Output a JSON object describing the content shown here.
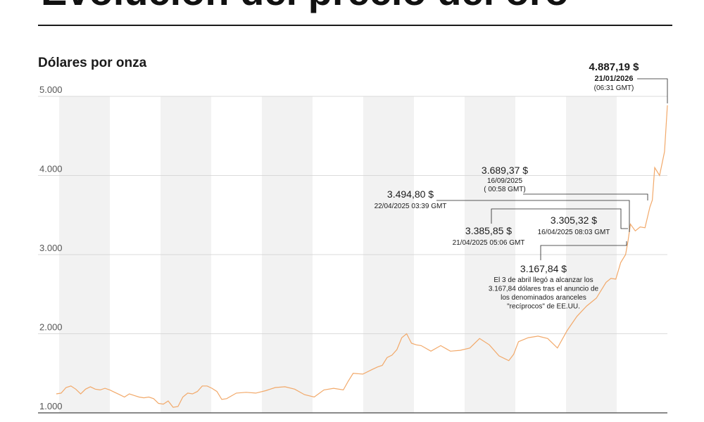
{
  "header": {
    "title_partial": "Evolución del precio del oro"
  },
  "chart_data": {
    "type": "line",
    "ylabel": "Dólares por onza",
    "ylim": [
      1000,
      5000
    ],
    "yticks": [
      1000,
      2000,
      3000,
      4000,
      5000
    ],
    "ytick_labels": [
      "1.000",
      "2.000",
      "3.000",
      "4.000",
      "5.000"
    ],
    "xlim": [
      2013.5,
      2026.06
    ],
    "line_color": "#f2a96a",
    "band_color": "#f2f2f2",
    "series": [
      {
        "x": [
          2013.5,
          2013.6,
          2013.7,
          2013.8,
          2013.9,
          2014.0,
          2014.1,
          2014.2,
          2014.3,
          2014.4,
          2014.5,
          2014.6,
          2014.7,
          2014.8,
          2014.9,
          2015.0,
          2015.1,
          2015.2,
          2015.3,
          2015.4,
          2015.5,
          2015.6,
          2015.7,
          2015.8,
          2015.9,
          2016.0,
          2016.1,
          2016.2,
          2016.3,
          2016.4,
          2016.5,
          2016.6,
          2016.7,
          2016.8,
          2016.9,
          2017.0,
          2017.2,
          2017.4,
          2017.6,
          2017.8,
          2018.0,
          2018.2,
          2018.4,
          2018.6,
          2018.8,
          2019.0,
          2019.2,
          2019.4,
          2019.5,
          2019.6,
          2019.8,
          2020.0,
          2020.1,
          2020.2,
          2020.3,
          2020.4,
          2020.5,
          2020.6,
          2020.7,
          2020.8,
          2020.9,
          2021.0,
          2021.2,
          2021.4,
          2021.6,
          2021.8,
          2022.0,
          2022.2,
          2022.4,
          2022.6,
          2022.8,
          2022.9,
          2023.0,
          2023.2,
          2023.4,
          2023.6,
          2023.8,
          2024.0,
          2024.2,
          2024.4,
          2024.6,
          2024.8,
          2024.9,
          2025.0,
          2025.1,
          2025.2,
          2025.25,
          2025.3,
          2025.4,
          2025.5,
          2025.6,
          2025.7,
          2025.75,
          2025.8,
          2025.9,
          2026.0,
          2026.06
        ],
        "y": [
          1240,
          1250,
          1320,
          1340,
          1300,
          1240,
          1300,
          1330,
          1300,
          1290,
          1310,
          1290,
          1260,
          1230,
          1200,
          1240,
          1220,
          1200,
          1190,
          1200,
          1180,
          1120,
          1110,
          1150,
          1070,
          1080,
          1200,
          1250,
          1240,
          1270,
          1340,
          1340,
          1310,
          1270,
          1170,
          1180,
          1250,
          1260,
          1250,
          1280,
          1320,
          1330,
          1300,
          1230,
          1200,
          1290,
          1310,
          1290,
          1400,
          1500,
          1490,
          1550,
          1580,
          1600,
          1700,
          1730,
          1800,
          1950,
          2000,
          1880,
          1860,
          1850,
          1780,
          1850,
          1780,
          1790,
          1820,
          1940,
          1860,
          1720,
          1660,
          1740,
          1900,
          1950,
          1970,
          1940,
          1820,
          2040,
          2220,
          2350,
          2450,
          2650,
          2700,
          2690,
          2900,
          3000,
          3168,
          3385,
          3300,
          3350,
          3340,
          3600,
          3689,
          4100,
          4000,
          4300,
          4887
        ]
      }
    ],
    "annotations": [
      {
        "value": "4.887,19 $",
        "date": "21/01/2026",
        "time": "(06:31 GMT)"
      },
      {
        "value": "3.689,37 $",
        "date": "16/09/2025",
        "time": "( 00:58 GMT)"
      },
      {
        "value": "3.494,80 $",
        "date": "22/04/2025 03:39 GMT"
      },
      {
        "value": "3.385,85 $",
        "date": "21/04/2025 05:06 GMT"
      },
      {
        "value": "3.305,32 $",
        "date": "16/04/2025 08:03 GMT"
      },
      {
        "value": "3.167,84 $",
        "note": [
          "El 3 de abril llegó a alcanzar los",
          "3.167,84 dólares tras el anuncio de",
          "los denominados aranceles",
          "\"recíprocos\" de EE.UU."
        ]
      }
    ]
  }
}
